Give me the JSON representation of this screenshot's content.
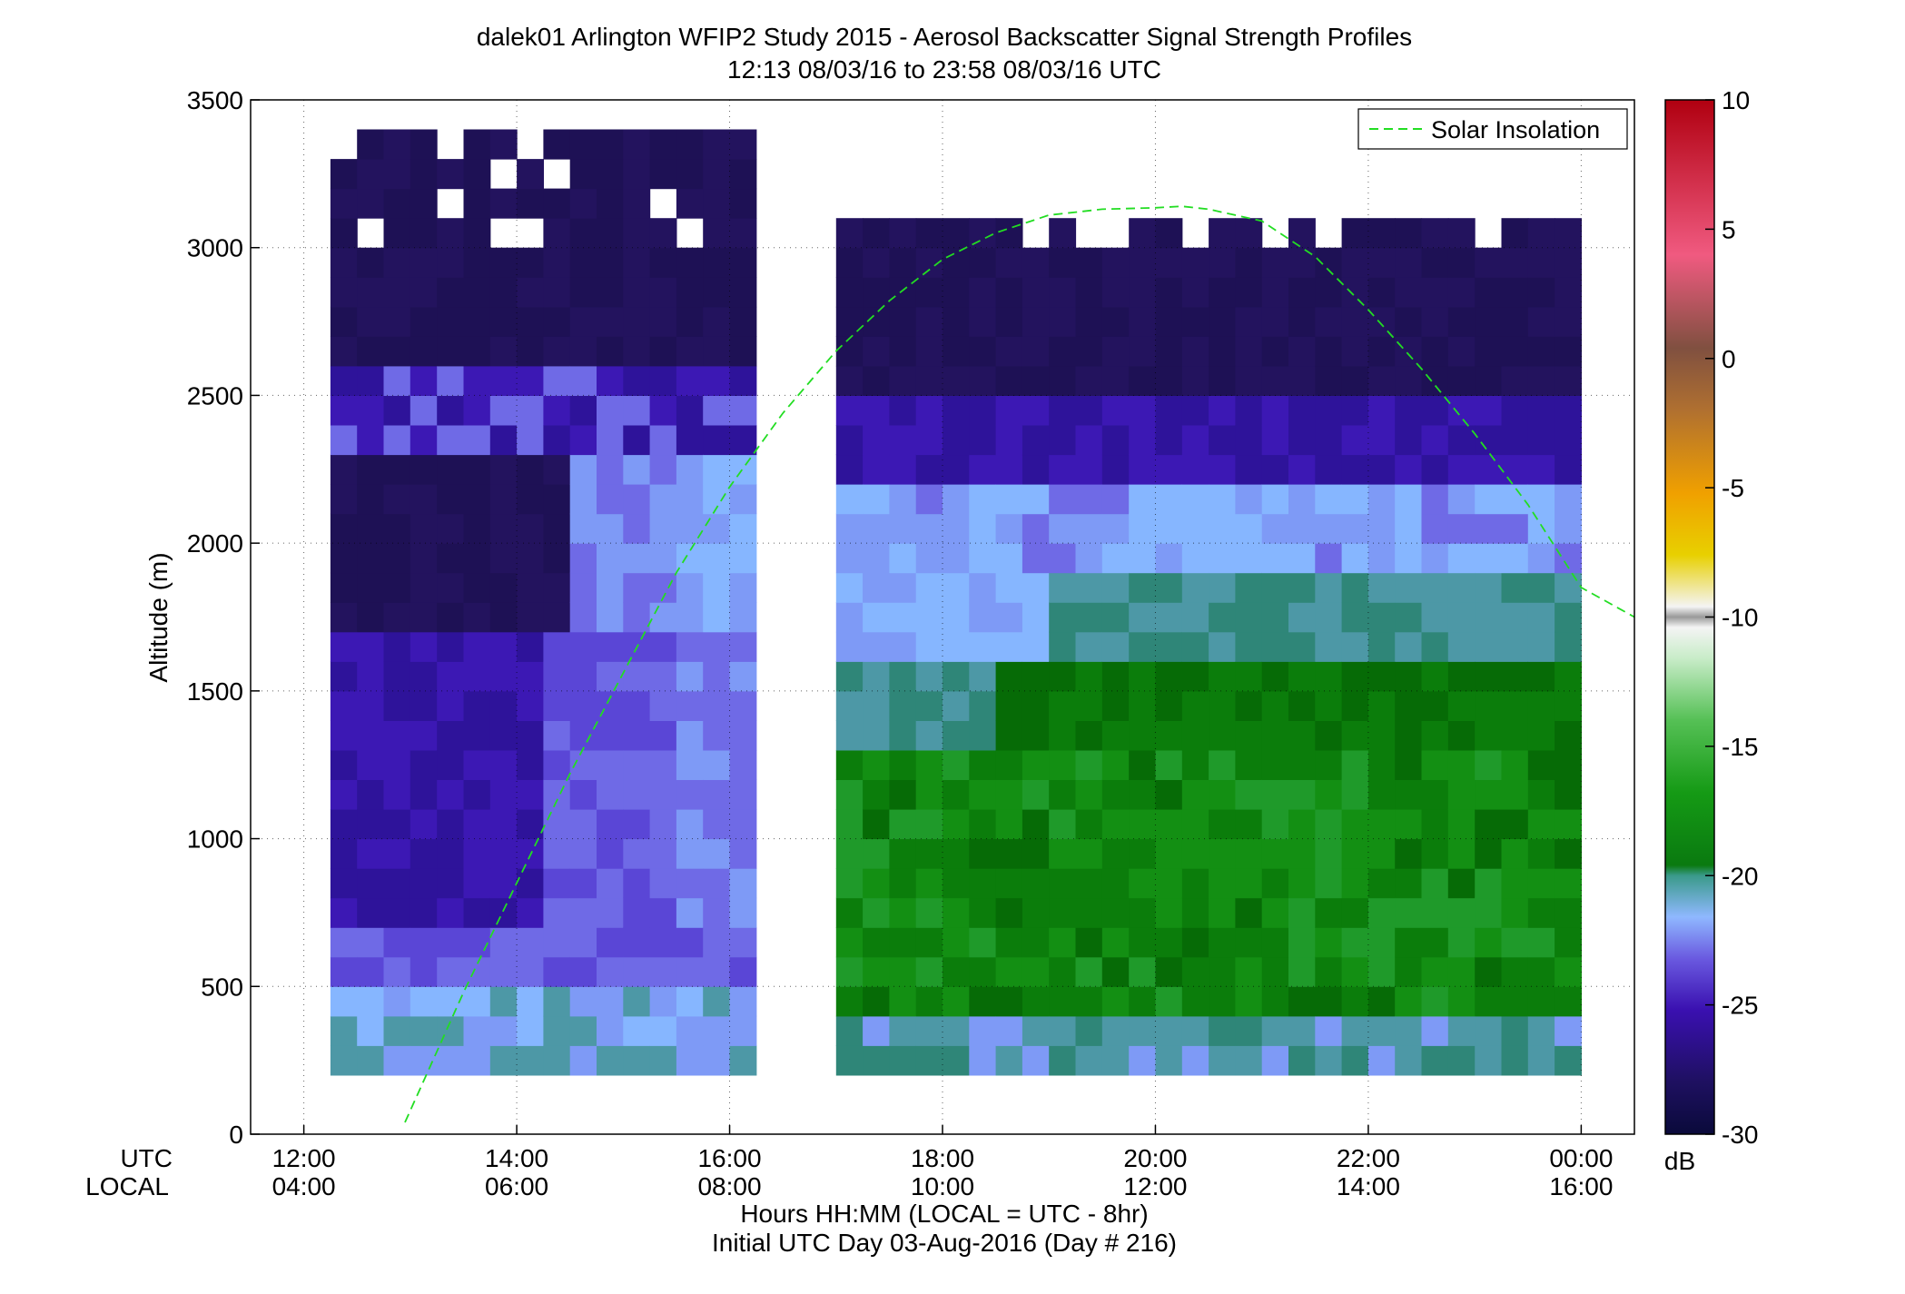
{
  "chart_data": {
    "type": "heatmap",
    "title": "dalek01 Arlington WFIP2 Study 2015 - Aerosol Backscatter Signal Strength Profiles",
    "subtitle": "12:13 08/03/16 to 23:58 08/03/16  UTC",
    "ylabel": "Altitude (m)",
    "xlabel": "Hours HH:MM  (LOCAL = UTC - 8hr)",
    "xlabel2": "Initial UTC Day 03-Aug-2016 (Day # 216)",
    "x_row_labels": [
      "UTC",
      "LOCAL"
    ],
    "xlim": [
      11.5,
      24.5
    ],
    "ylim": [
      0,
      3500
    ],
    "x_ticks": [
      {
        "value": 12,
        "utc": "12:00",
        "local": "04:00"
      },
      {
        "value": 14,
        "utc": "14:00",
        "local": "06:00"
      },
      {
        "value": 16,
        "utc": "16:00",
        "local": "08:00"
      },
      {
        "value": 18,
        "utc": "18:00",
        "local": "10:00"
      },
      {
        "value": 20,
        "utc": "20:00",
        "local": "12:00"
      },
      {
        "value": 22,
        "utc": "22:00",
        "local": "14:00"
      },
      {
        "value": 24,
        "utc": "00:00",
        "local": "16:00"
      }
    ],
    "y_ticks": [
      0,
      500,
      1000,
      1500,
      2000,
      2500,
      3000,
      3500
    ],
    "grid": true,
    "legend": {
      "position": "top-right",
      "entries": [
        "Solar Insolation"
      ]
    },
    "series": [
      {
        "name": "Solar Insolation",
        "color": "#22dd22",
        "style": "dashed",
        "x": [
          12.95,
          13.5,
          14,
          14.5,
          15,
          15.5,
          16,
          16.5,
          17,
          17.5,
          18,
          18.5,
          19,
          19.5,
          20,
          20.25,
          20.5,
          21,
          21.5,
          22,
          22.5,
          23,
          23.5,
          24,
          24.5
        ],
        "y": [
          40,
          480,
          850,
          1220,
          1560,
          1900,
          2190,
          2440,
          2650,
          2820,
          2960,
          3050,
          3110,
          3130,
          3135,
          3140,
          3130,
          3090,
          2970,
          2790,
          2590,
          2370,
          2130,
          1850,
          1750
        ]
      }
    ],
    "heatmap": {
      "gap_utc": [
        16.25,
        17.0
      ],
      "alt_min": 200,
      "alt_bin": 100,
      "regions_note": "signal strength in dB per time/altitude bin",
      "colorbar": {
        "label": "dB",
        "range": [
          -30,
          10
        ],
        "ticks": [
          10,
          5,
          0,
          -5,
          -10,
          -15,
          -20,
          -25,
          -30
        ]
      }
    }
  }
}
